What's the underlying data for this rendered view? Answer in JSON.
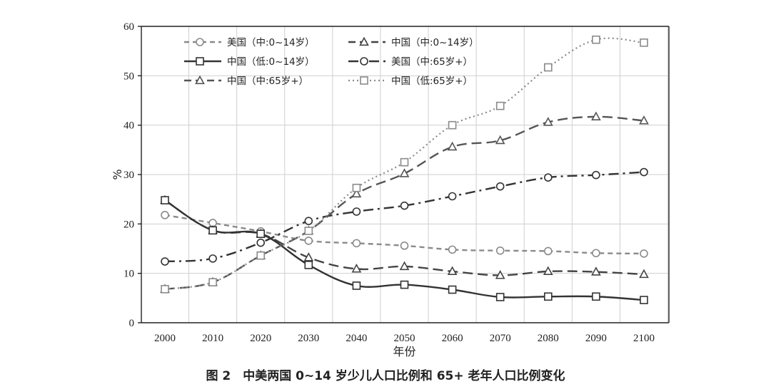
{
  "chart_data": {
    "type": "line",
    "xlabel": "年份",
    "ylabel": "%",
    "x": [
      2000,
      2010,
      2020,
      2030,
      2040,
      2050,
      2060,
      2070,
      2080,
      2090,
      2100
    ],
    "ylim": [
      0,
      60
    ],
    "xlim": [
      2000,
      2100
    ],
    "yticks": [
      0,
      10,
      20,
      30,
      40,
      50,
      60
    ],
    "grid": true,
    "legend_position": "top-left",
    "caption": "图 2　中美两国 0~14 岁少儿人口比例和 65+ 老年人口比例变化",
    "series": [
      {
        "name": "美国（中:0~14岁）",
        "color": "#8a8a8a",
        "dash": "dashed",
        "marker": "circle",
        "values": [
          21.8,
          20.2,
          18.5,
          16.6,
          16.1,
          15.6,
          14.8,
          14.6,
          14.5,
          14.1,
          14.0
        ]
      },
      {
        "name": "中国（中:0~14岁）",
        "color": "#444444",
        "dash": "longdash",
        "marker": "triangle",
        "values": [
          24.8,
          18.7,
          18.0,
          13.2,
          10.9,
          11.4,
          10.4,
          9.6,
          10.4,
          10.3,
          9.8
        ]
      },
      {
        "name": "中国（低:0~14岁）",
        "color": "#333333",
        "dash": "solid",
        "marker": "square",
        "values": [
          24.8,
          18.7,
          18.0,
          11.7,
          7.5,
          7.7,
          6.7,
          5.2,
          5.3,
          5.3,
          4.6
        ]
      },
      {
        "name": "美国（中:65岁+）",
        "color": "#333333",
        "dash": "dashdot",
        "marker": "circle",
        "values": [
          12.4,
          13.0,
          16.2,
          20.6,
          22.5,
          23.7,
          25.6,
          27.6,
          29.4,
          29.9,
          30.5
        ]
      },
      {
        "name": "中国（中:65岁+）",
        "color": "#555555",
        "dash": "longdash",
        "marker": "triangle",
        "values": [
          6.8,
          8.2,
          13.6,
          18.6,
          26.1,
          30.2,
          35.6,
          36.9,
          40.6,
          41.7,
          40.9
        ]
      },
      {
        "name": "中国（低:65岁+）",
        "color": "#8a8a8a",
        "dash": "dotted",
        "marker": "square",
        "values": [
          6.8,
          8.2,
          13.6,
          18.6,
          27.3,
          32.5,
          40.0,
          43.9,
          51.7,
          57.3,
          56.7
        ]
      }
    ]
  }
}
